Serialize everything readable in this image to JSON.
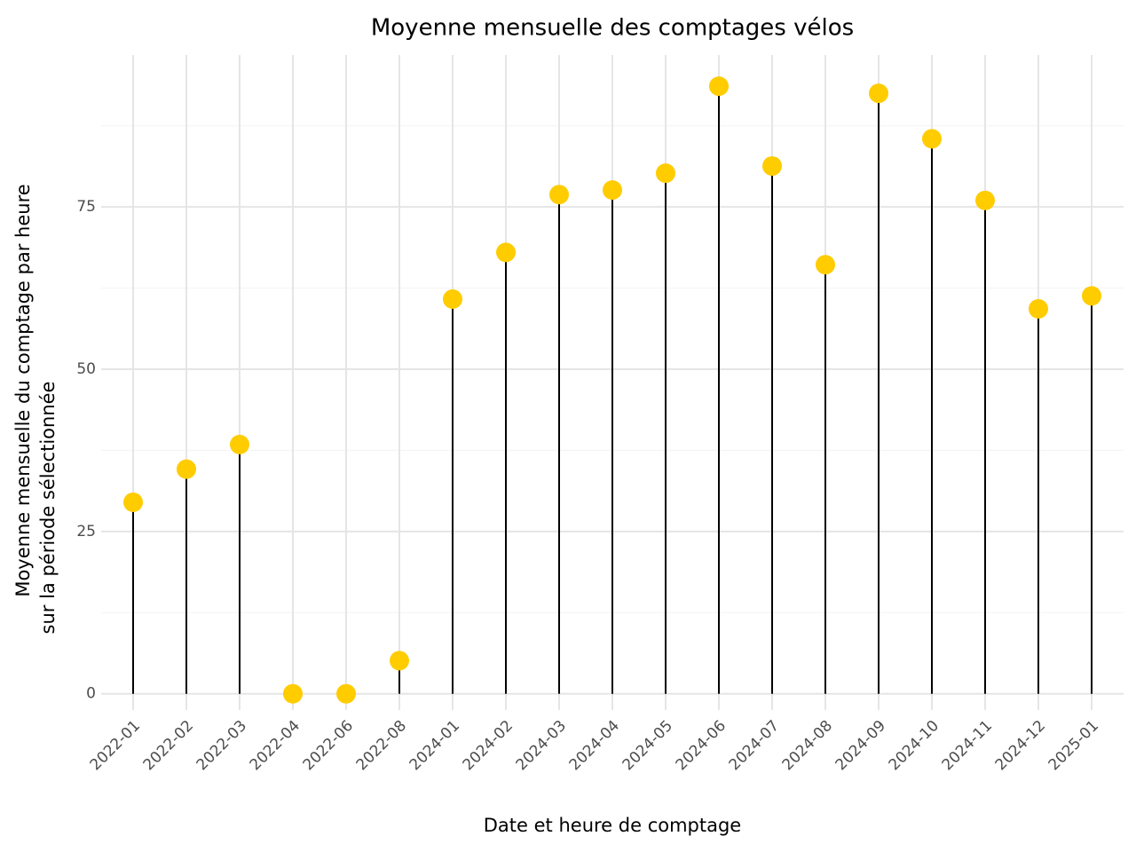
{
  "chart_data": {
    "type": "lollipop",
    "title": "Moyenne mensuelle des comptages vélos",
    "xlabel": "Date et heure de comptage",
    "ylabel": [
      "Moyenne mensuelle du comptage par heure",
      "sur la période sélectionnée"
    ],
    "categories": [
      "2022-01",
      "2022-02",
      "2022-03",
      "2022-04",
      "2022-06",
      "2022-08",
      "2024-01",
      "2024-02",
      "2024-03",
      "2024-04",
      "2024-05",
      "2024-06",
      "2024-07",
      "2024-08",
      "2024-09",
      "2024-10",
      "2024-11",
      "2024-12",
      "2025-01"
    ],
    "values": [
      29.5,
      34.6,
      38.4,
      0,
      0,
      5.1,
      60.8,
      68.0,
      76.9,
      77.6,
      80.2,
      93.6,
      81.3,
      66.1,
      92.5,
      85.5,
      76.0,
      59.3,
      61.3
    ],
    "color": "#ffcc00",
    "stem_color": "#000000",
    "ylim": [
      -2.5,
      98.4
    ],
    "yticks": [
      0,
      25,
      50,
      75
    ],
    "grid": true
  }
}
